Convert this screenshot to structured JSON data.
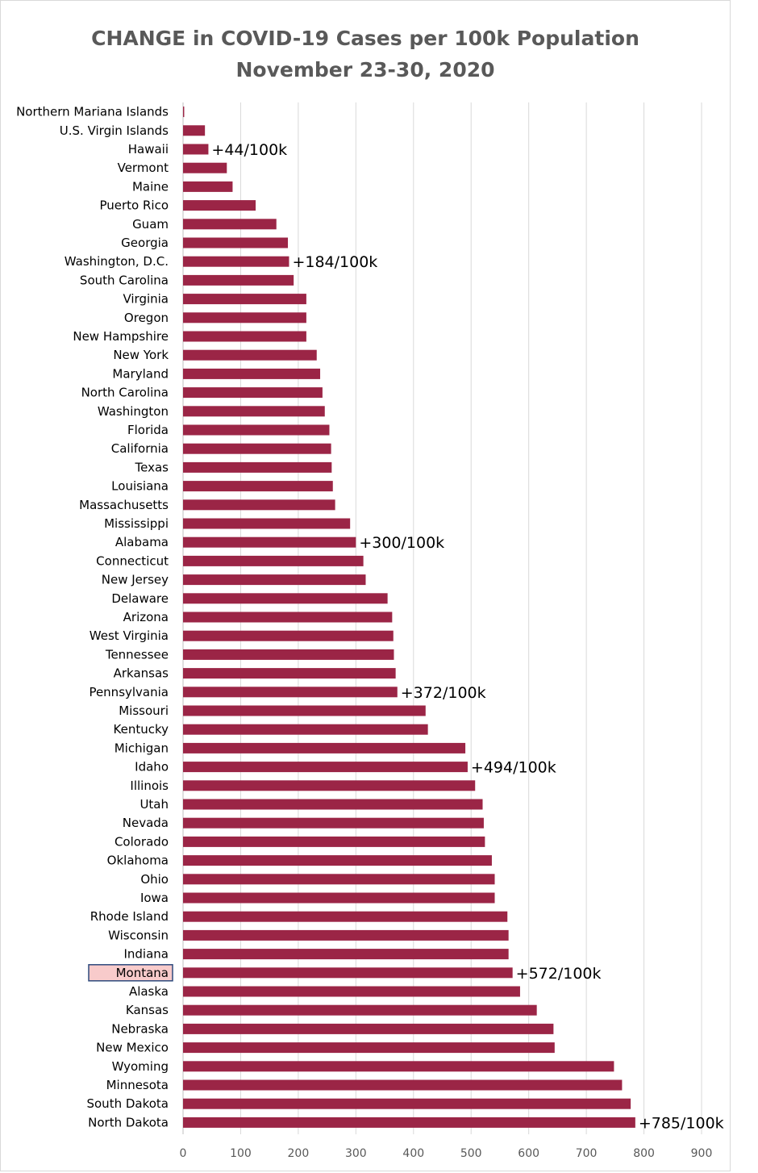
{
  "chart_data": {
    "type": "bar",
    "orientation": "horizontal",
    "title": "CHANGE in COVID-19 Cases per 100k Population",
    "subtitle": "November 23-30, 2020",
    "xlabel": "",
    "ylabel": "",
    "xlim": [
      0,
      900
    ],
    "xticks": [
      0,
      100,
      200,
      300,
      400,
      500,
      600,
      700,
      800,
      900
    ],
    "grid": true,
    "bar_color": "#9B2546",
    "highlight_category": "Montana",
    "highlight_fill": "#F8CBCB",
    "highlight_border": "#2E4A7D",
    "categories": [
      "Northern Mariana Islands",
      "U.S. Virgin Islands",
      "Hawaii",
      "Vermont",
      "Maine",
      "Puerto Rico",
      "Guam",
      "Georgia",
      "Washington, D.C.",
      "South Carolina",
      "Virginia",
      "Oregon",
      "New Hampshire",
      "New York",
      "Maryland",
      "North Carolina",
      "Washington",
      "Florida",
      "California",
      "Texas",
      "Louisiana",
      "Massachusetts",
      "Mississippi",
      "Alabama",
      "Connecticut",
      "New Jersey",
      "Delaware",
      "Arizona",
      "West Virginia",
      "Tennessee",
      "Arkansas",
      "Pennsylvania",
      "Missouri",
      "Kentucky",
      "Michigan",
      "Idaho",
      "Illinois",
      "Utah",
      "Nevada",
      "Colorado",
      "Oklahoma",
      "Ohio",
      "Iowa",
      "Rhode Island",
      "Wisconsin",
      "Indiana",
      "Montana",
      "Alaska",
      "Kansas",
      "Nebraska",
      "New Mexico",
      "Wyoming",
      "Minnesota",
      "South Dakota",
      "North Dakota"
    ],
    "values": [
      2,
      38,
      44,
      76,
      86,
      126,
      162,
      182,
      184,
      192,
      214,
      214,
      214,
      232,
      238,
      242,
      246,
      254,
      257,
      258,
      260,
      264,
      290,
      300,
      313,
      317,
      355,
      363,
      365,
      366,
      369,
      372,
      421,
      425,
      490,
      494,
      507,
      520,
      522,
      524,
      536,
      541,
      541,
      563,
      565,
      565,
      572,
      585,
      614,
      643,
      645,
      748,
      762,
      777,
      785
    ],
    "annotations": [
      {
        "category": "Hawaii",
        "text": "+44/100k"
      },
      {
        "category": "Washington, D.C.",
        "text": "+184/100k"
      },
      {
        "category": "Alabama",
        "text": "+300/100k"
      },
      {
        "category": "Pennsylvania",
        "text": "+372/100k"
      },
      {
        "category": "Idaho",
        "text": "+494/100k"
      },
      {
        "category": "Montana",
        "text": "+572/100k"
      },
      {
        "category": "North Dakota",
        "text": "+785/100k"
      }
    ]
  }
}
